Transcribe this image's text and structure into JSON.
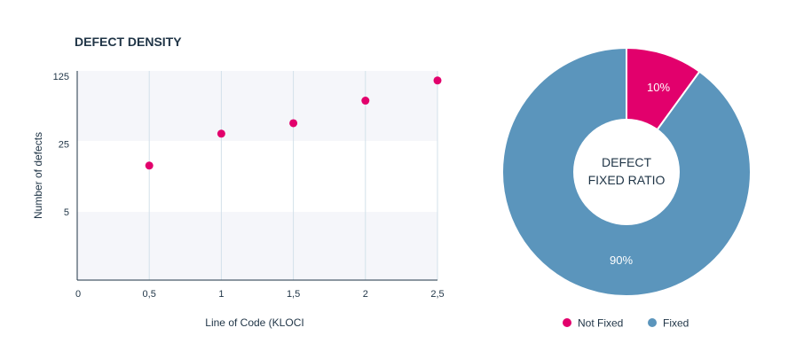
{
  "chart_data": [
    {
      "type": "scatter",
      "title": "DEFECT DENSITY",
      "xlabel": "Line of Code (KLOCI",
      "ylabel": "Number of defects",
      "x_ticks": [
        "0",
        "0,5",
        "1",
        "1,5",
        "2",
        "2,5"
      ],
      "y_ticks": [
        "5",
        "25",
        "125"
      ],
      "y_scale": "log5",
      "xlim": [
        0,
        2.5
      ],
      "ylim": [
        1,
        125
      ],
      "x": [
        0.5,
        1.0,
        1.5,
        2.0,
        2.5
      ],
      "y": [
        15,
        32,
        41,
        70,
        113
      ],
      "point_color": "#e2006c",
      "band_color": "#f5f6fa",
      "grid": "vertical"
    },
    {
      "type": "pie",
      "style": "donut",
      "center_label_lines": [
        "DEFECT",
        "FIXED RATIO"
      ],
      "slices": [
        {
          "label": "Not Fixed",
          "value": 10,
          "display": "10%",
          "color": "#e2006c"
        },
        {
          "label": "Fixed",
          "value": 90,
          "display": "90%",
          "color": "#5b95bc"
        }
      ],
      "legend": "bottom"
    }
  ]
}
